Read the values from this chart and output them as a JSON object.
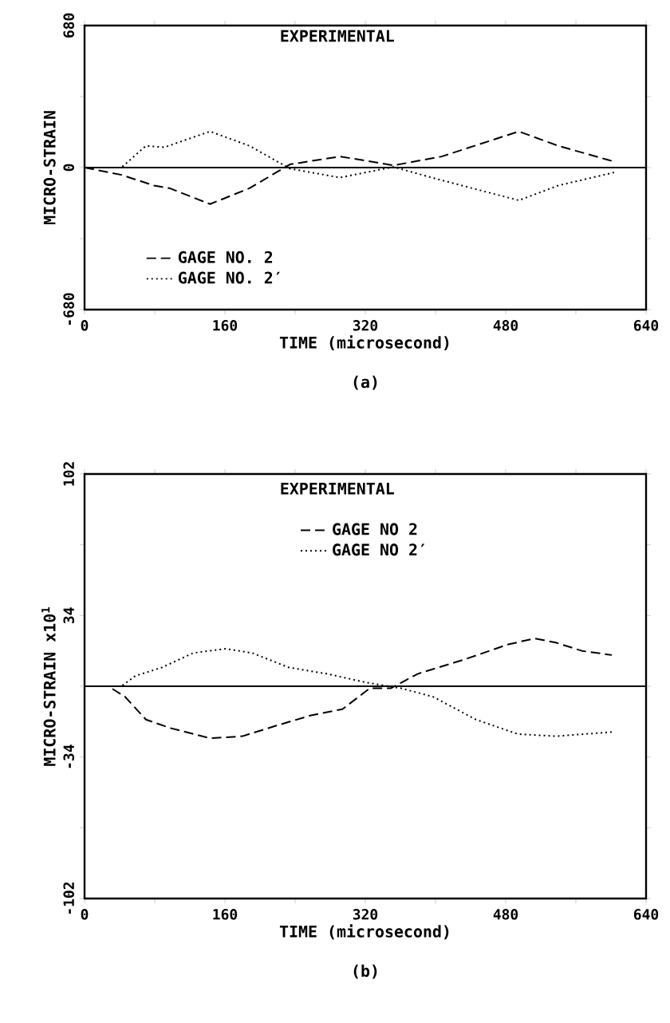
{
  "chart_data": [
    {
      "type": "line",
      "title": "EXPERIMENTAL",
      "xlabel": "TIME (microsecond)",
      "ylabel": "MICRO-STRAIN",
      "annotations": [
        "(a)"
      ],
      "xlim": [
        0,
        640
      ],
      "ylim": [
        -680,
        680
      ],
      "xticks": [
        0,
        {
          "value": 80,
          "label": null
        },
        160,
        {
          "value": 240,
          "label": null
        },
        320,
        {
          "value": 400,
          "label": null
        },
        480,
        {
          "value": 560,
          "label": null
        },
        640
      ],
      "yticks": [
        -680,
        {
          "value": -340,
          "label": null
        },
        0,
        {
          "value": 340,
          "label": null
        },
        680
      ],
      "ref_lines": [
        {
          "axis": "y",
          "value": 0,
          "label": null,
          "color": "#000000",
          "line_style": "solid"
        }
      ],
      "legend": "bottom left",
      "grid": false,
      "marker": "none",
      "series": [
        {
          "name": "GAGE NO. 2",
          "color": "#000000",
          "line_style": "dashed",
          "x": [
            0,
            42,
            79,
            97,
            143,
            188,
            234,
            291,
            328,
            352,
            407,
            495,
            540,
            604
          ],
          "values": [
            0,
            -35,
            -86,
            -99,
            -175,
            -99,
            15,
            53,
            28,
            10,
            53,
            173,
            104,
            28
          ]
        },
        {
          "name": "GAGE NO. 2′",
          "color": "#000000",
          "line_style": "dotted",
          "x": [
            0,
            42,
            70,
            91,
            143,
            188,
            234,
            291,
            352,
            407,
            495,
            540,
            604
          ],
          "values": [
            0,
            0,
            104,
            97,
            173,
            104,
            -5,
            -48,
            3,
            -61,
            -157,
            -86,
            -23
          ]
        }
      ]
    },
    {
      "type": "line",
      "title": "EXPERIMENTAL",
      "xlabel": "TIME (microsecond)",
      "ylabel": "MICRO-STRAIN x10$^{1}$",
      "annotations": [
        "(b)"
      ],
      "xlim": [
        0,
        640
      ],
      "ylim": [
        -102,
        102
      ],
      "xticks": [
        0,
        {
          "value": 80,
          "label": null
        },
        160,
        {
          "value": 240,
          "label": null
        },
        320,
        {
          "value": 400,
          "label": null
        },
        480,
        {
          "value": 560,
          "label": null
        },
        640
      ],
      "yticks": [
        -102,
        {
          "value": -68,
          "label": null
        },
        -34,
        {
          "value": 0,
          "label": null
        },
        34,
        {
          "value": 68,
          "label": null
        },
        102
      ],
      "ref_lines": [
        {
          "axis": "y",
          "value": 0,
          "label": null,
          "color": "#000000",
          "line_style": "solid"
        }
      ],
      "legend": "top",
      "grid": false,
      "marker": "none",
      "series": [
        {
          "name": "GAGE NO 2",
          "color": "#000000",
          "line_style": "dashed",
          "x": [
            0,
            27,
            46,
            70,
            97,
            143,
            180,
            218,
            258,
            294,
            325,
            349,
            380,
            434,
            482,
            513,
            537,
            567,
            601
          ],
          "values": [
            0,
            0,
            -5,
            -16,
            -20,
            -25,
            -24,
            -19,
            -14,
            -11,
            -1,
            -1,
            6,
            13,
            20,
            23,
            21,
            17,
            15
          ]
        },
        {
          "name": "GAGE NO 2′",
          "color": "#000000",
          "line_style": "dotted",
          "x": [
            0,
            42,
            58,
            88,
            124,
            161,
            191,
            233,
            276,
            319,
            361,
            397,
            446,
            494,
            537,
            601
          ],
          "values": [
            0,
            0,
            5,
            9,
            16,
            18,
            16,
            9,
            6,
            2,
            -1,
            -5,
            -16,
            -23,
            -24,
            -22
          ]
        }
      ]
    }
  ]
}
